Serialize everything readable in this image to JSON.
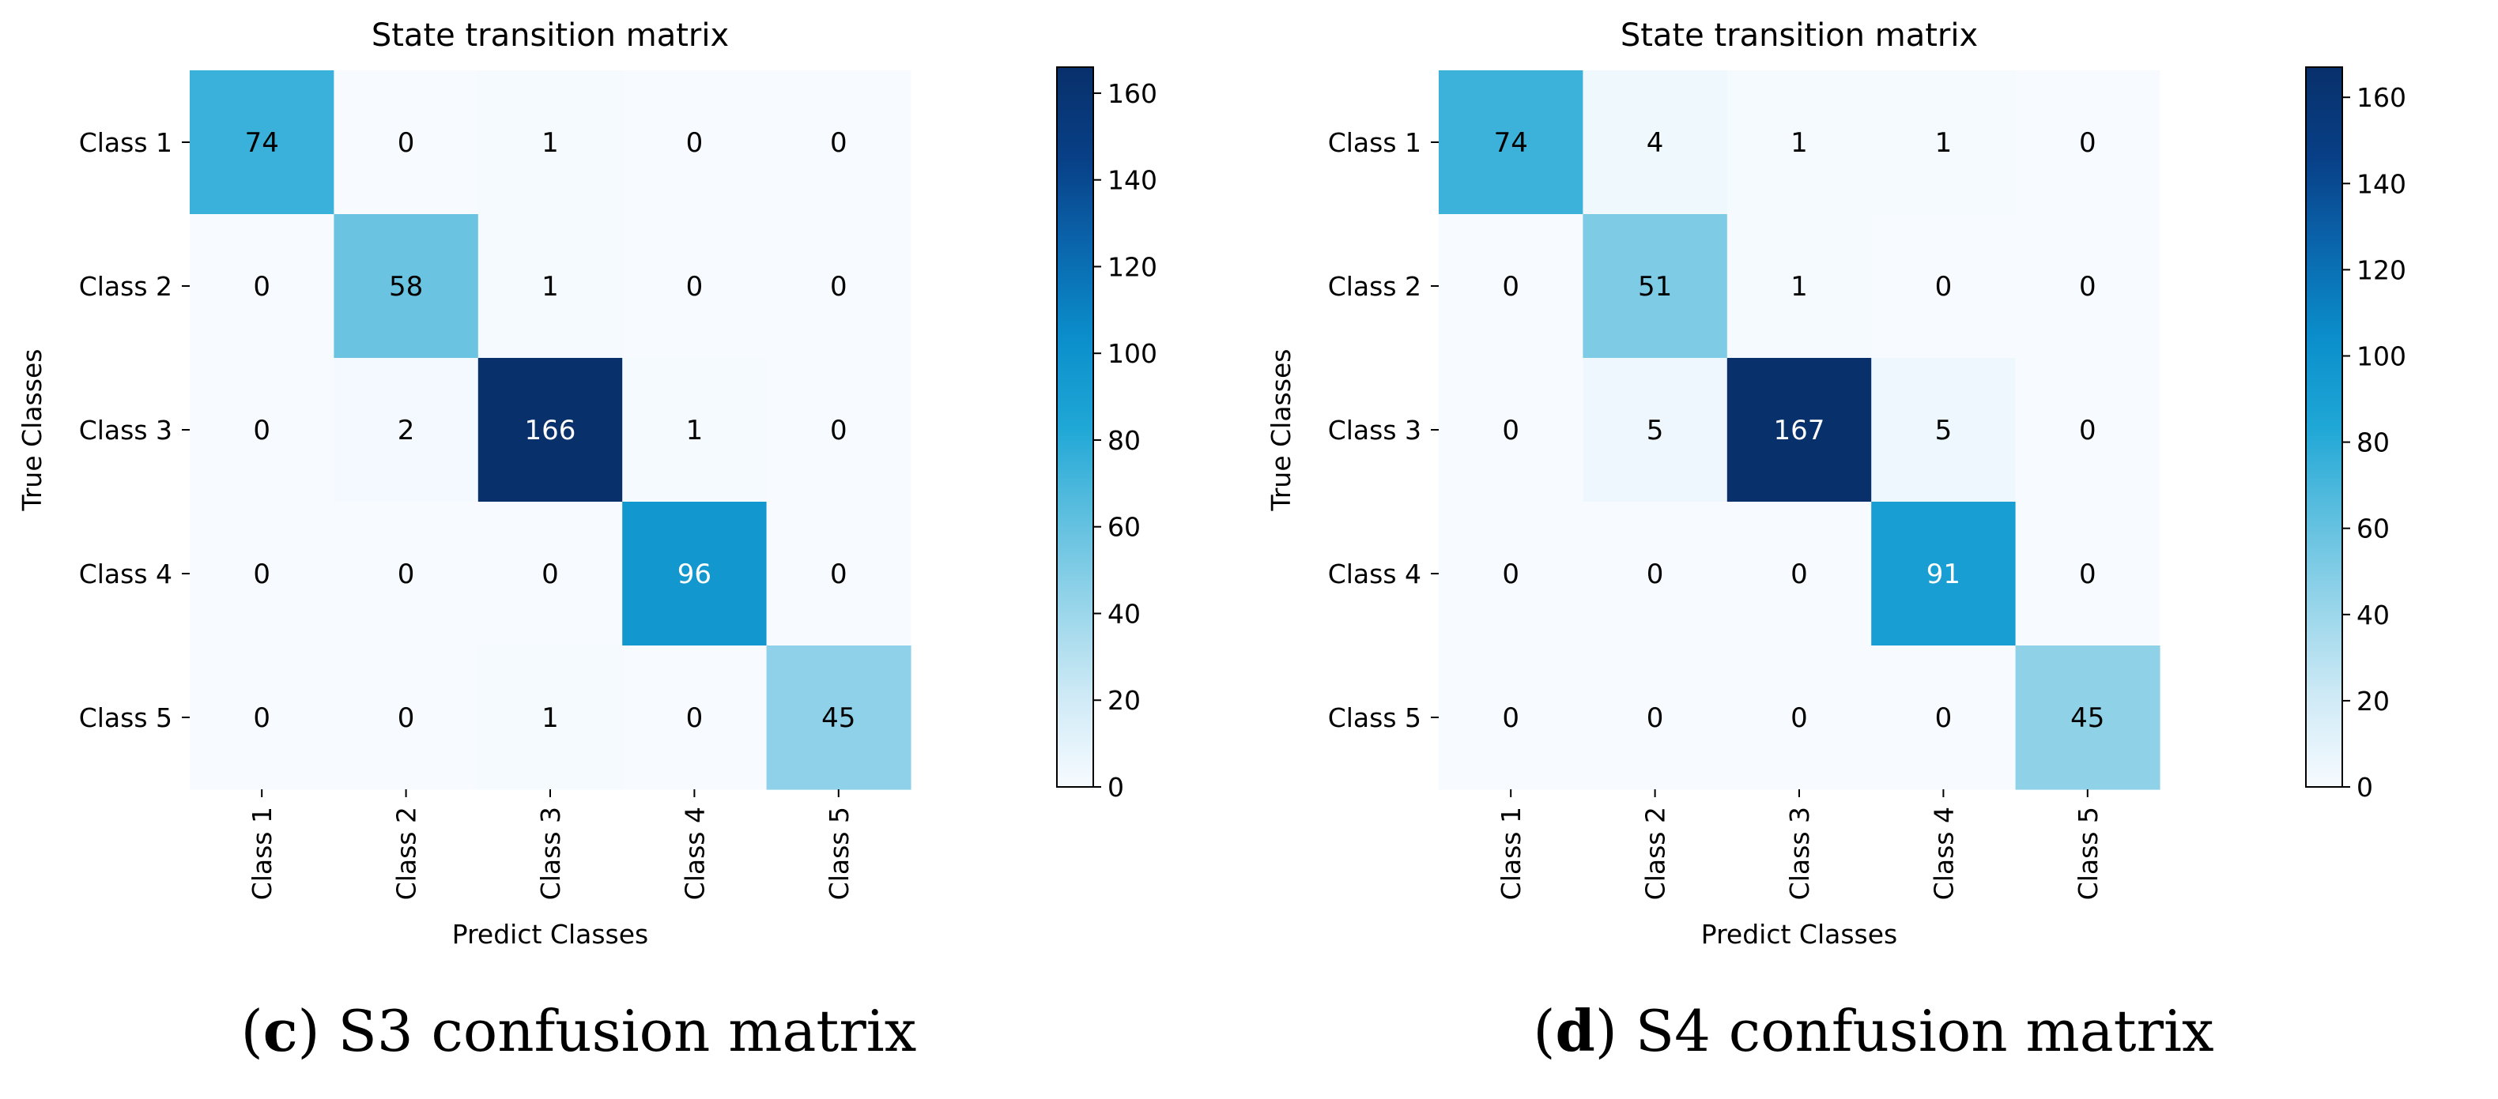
{
  "chart_data": [
    {
      "type": "heatmap",
      "title": "State transition matrix",
      "xlabel": "Predict Classes",
      "ylabel": "True Classes",
      "x_categories": [
        "Class 1",
        "Class 2",
        "Class 3",
        "Class 4",
        "Class 5"
      ],
      "y_categories": [
        "Class 1",
        "Class 2",
        "Class 3",
        "Class 4",
        "Class 5"
      ],
      "matrix": [
        [
          74,
          0,
          1,
          0,
          0
        ],
        [
          0,
          58,
          1,
          0,
          0
        ],
        [
          0,
          2,
          166,
          1,
          0
        ],
        [
          0,
          0,
          0,
          96,
          0
        ],
        [
          0,
          0,
          1,
          0,
          45
        ]
      ],
      "colorbar": {
        "min": 0,
        "max": 166,
        "ticks": [
          "0",
          "20",
          "40",
          "60",
          "80",
          "100",
          "120",
          "140",
          "160"
        ],
        "colormap": "Blues"
      }
    },
    {
      "type": "heatmap",
      "title": "State transition matrix",
      "xlabel": "Predict Classes",
      "ylabel": "True Classes",
      "x_categories": [
        "Class 1",
        "Class 2",
        "Class 3",
        "Class 4",
        "Class 5"
      ],
      "y_categories": [
        "Class 1",
        "Class 2",
        "Class 3",
        "Class 4",
        "Class 5"
      ],
      "matrix": [
        [
          74,
          4,
          1,
          1,
          0
        ],
        [
          0,
          51,
          1,
          0,
          0
        ],
        [
          0,
          5,
          167,
          5,
          0
        ],
        [
          0,
          0,
          0,
          91,
          0
        ],
        [
          0,
          0,
          0,
          0,
          45
        ]
      ],
      "colorbar": {
        "min": 0,
        "max": 167,
        "ticks": [
          "0",
          "20",
          "40",
          "60",
          "80",
          "100",
          "120",
          "140",
          "160"
        ],
        "colormap": "Blues"
      }
    }
  ],
  "captions": [
    {
      "letter": "c",
      "text": "S3 confusion matrix"
    },
    {
      "letter": "d",
      "text": "S4 confusion matrix"
    }
  ],
  "colors": {
    "scale": [
      "#f7fbff",
      "#cfeaf6",
      "#98d5ea",
      "#5ebfdf",
      "#1fa7d6",
      "#0b8ecb",
      "#0a66ad",
      "#083f86",
      "#08306b"
    ]
  }
}
